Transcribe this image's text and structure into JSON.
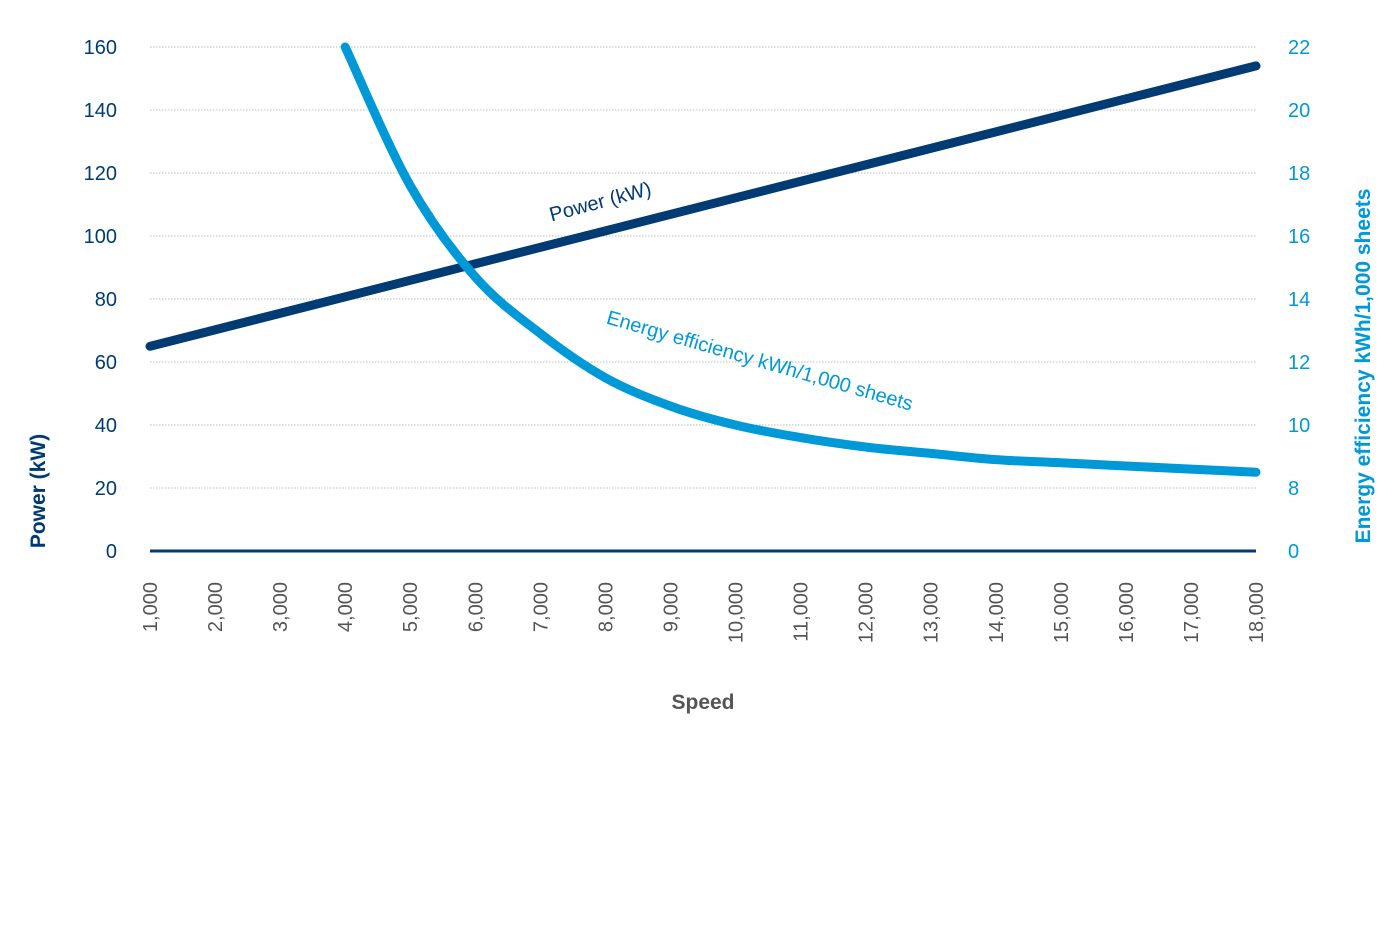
{
  "colors": {
    "power": "#003b73",
    "efficiency": "#0099d8",
    "grid": "#bdbdbd",
    "speed_label": "#555555"
  },
  "chart_data": {
    "type": "line",
    "title": "",
    "xlabel": "Speed",
    "ylabel": "Power (kW)",
    "ylabel_right": "Energy efficiency kWh/1,000 sheets",
    "x_categories": [
      "1,000",
      "2,000",
      "3,000",
      "4,000",
      "5,000",
      "6,000",
      "7,000",
      "8,000",
      "9,000",
      "10,000",
      "11,000",
      "12,000",
      "13,000",
      "14,000",
      "15,000",
      "16,000",
      "17,000",
      "18,000"
    ],
    "x_range": [
      1000,
      18000
    ],
    "y_left_ticks": [
      "0",
      "20",
      "40",
      "60",
      "80",
      "100",
      "120",
      "140",
      "160"
    ],
    "y_left_range": [
      0,
      160
    ],
    "y_right_ticks": [
      "0",
      "8",
      "10",
      "12",
      "14",
      "16",
      "18",
      "20",
      "22"
    ],
    "y_right_scale": "broken: 0, then 8–22",
    "grid": true,
    "series": [
      {
        "name": "Power (kW)",
        "axis": "left",
        "x": [
          1000,
          18000
        ],
        "y": [
          65,
          154
        ]
      },
      {
        "name": "Energy efficiency kWh/1,000 sheets",
        "axis": "right",
        "x": [
          4000,
          5000,
          6000,
          7000,
          8000,
          9000,
          10000,
          11000,
          12000,
          13000,
          14000,
          15000,
          16000,
          17000,
          18000
        ],
        "y": [
          22.0,
          17.6,
          14.7,
          12.9,
          11.5,
          10.6,
          10.0,
          9.6,
          9.3,
          9.1,
          8.9,
          8.8,
          8.7,
          8.6,
          8.5
        ]
      }
    ]
  }
}
